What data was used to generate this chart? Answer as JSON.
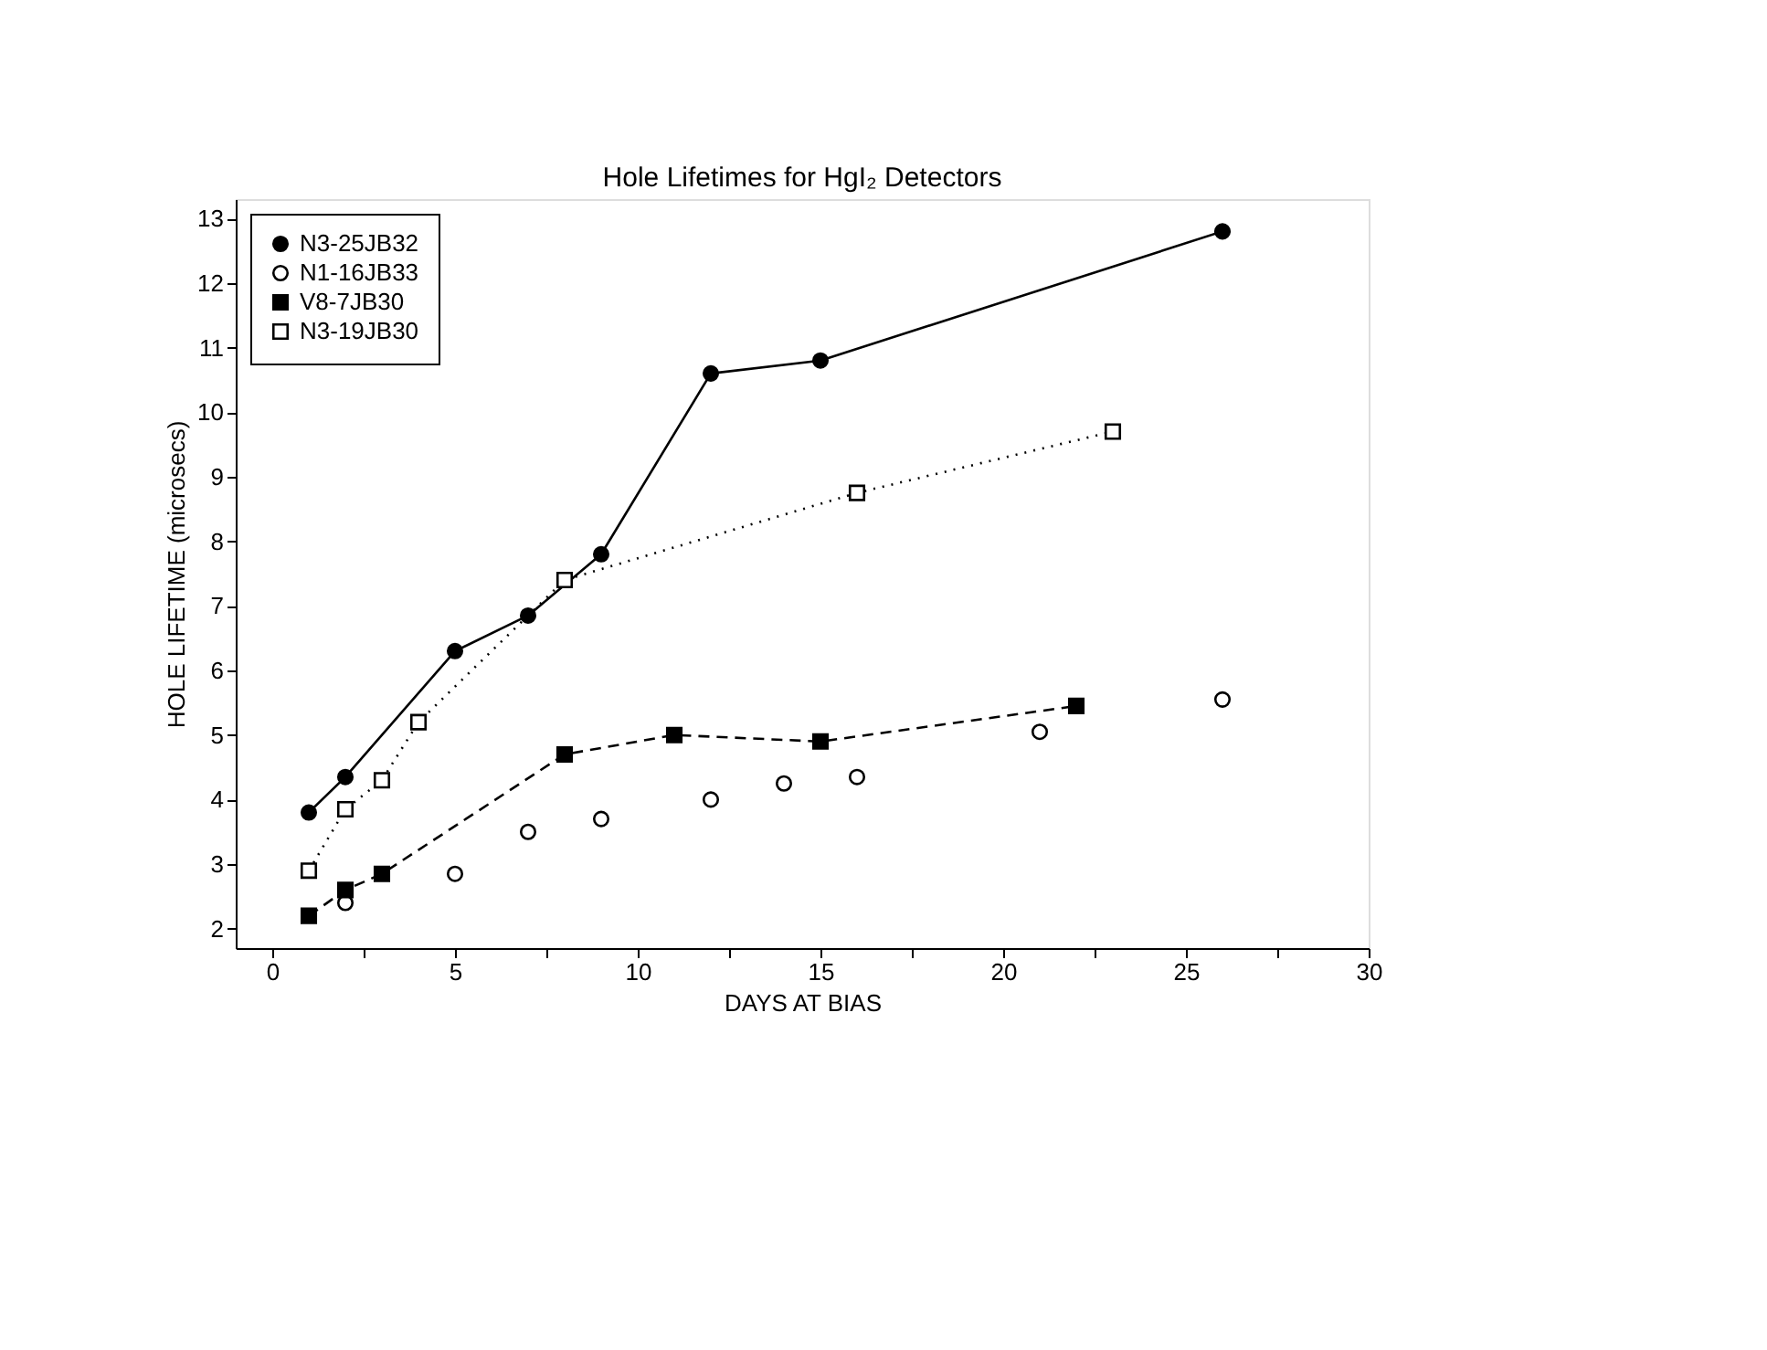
{
  "chart_data": {
    "type": "line",
    "title": "Hole Lifetimes for HgI₂ Detectors",
    "xlabel": "DAYS AT BIAS",
    "ylabel": "HOLE LIFETIME (microsecs)",
    "xlim": [
      -1,
      30
    ],
    "ylim": [
      1.7,
      13.3
    ],
    "xticks": [
      0,
      {
        "value": 2.5,
        "label": null
      },
      5,
      {
        "value": 7.5,
        "label": null
      },
      10,
      {
        "value": 12.5,
        "label": null
      },
      15,
      {
        "value": 17.5,
        "label": null
      },
      20,
      {
        "value": 22.5,
        "label": null
      },
      25,
      {
        "value": 27.5,
        "label": null
      },
      30
    ],
    "yticks": [
      2,
      3,
      4,
      5,
      6,
      7,
      8,
      9,
      10,
      11,
      12,
      13
    ],
    "grid": false,
    "legend": "top left",
    "series": [
      {
        "name": "N3-25JB32",
        "color": "#000000",
        "marker": "circle",
        "line_style": "solid",
        "x": [
          1,
          2,
          5,
          7,
          9,
          12,
          15,
          26
        ],
        "values": [
          3.8,
          4.35,
          6.3,
          6.85,
          7.8,
          10.6,
          10.8,
          12.8
        ]
      },
      {
        "name": "N1-16JB33",
        "color": "#000000",
        "type": "scatter",
        "marker": "circle",
        "x": [
          2,
          5,
          7,
          9,
          12,
          14,
          16,
          21,
          26
        ],
        "values": [
          2.4,
          2.85,
          3.5,
          3.7,
          4.0,
          4.25,
          4.35,
          5.05,
          5.55
        ]
      },
      {
        "name": "V8-7JB30",
        "color": "#000000",
        "marker": "square",
        "line_style": "dashed",
        "x": [
          1,
          2,
          3,
          8,
          11,
          15,
          22
        ],
        "values": [
          2.2,
          2.6,
          2.85,
          4.7,
          5.0,
          4.9,
          5.45
        ]
      },
      {
        "name": "N3-19JB30",
        "color": "#000000",
        "marker": "square",
        "line_style": "dotted",
        "x": [
          1,
          2,
          3,
          4,
          8,
          16,
          23
        ],
        "values": [
          2.9,
          3.85,
          4.3,
          5.2,
          7.4,
          8.75,
          9.7
        ]
      }
    ]
  }
}
